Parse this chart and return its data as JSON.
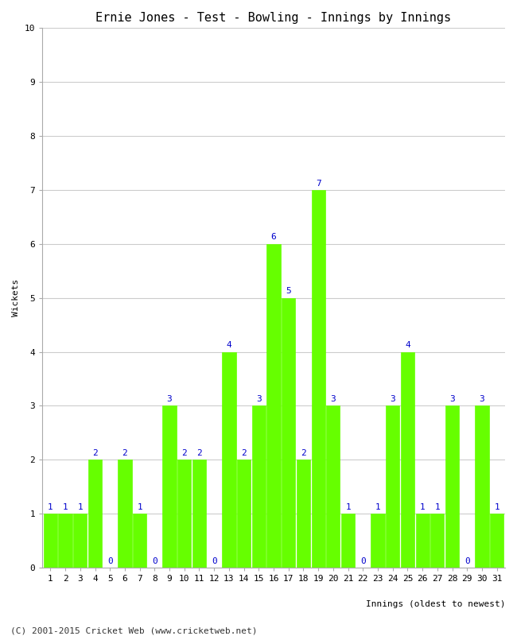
{
  "title": "Ernie Jones - Test - Bowling - Innings by Innings",
  "xlabel": "Innings (oldest to newest)",
  "ylabel": "Wickets",
  "categories": [
    1,
    2,
    3,
    4,
    5,
    6,
    7,
    8,
    9,
    10,
    11,
    12,
    13,
    14,
    15,
    16,
    17,
    18,
    19,
    20,
    21,
    22,
    23,
    24,
    25,
    26,
    27,
    28,
    29,
    30,
    31
  ],
  "values": [
    1,
    1,
    1,
    2,
    0,
    2,
    1,
    0,
    3,
    2,
    2,
    0,
    4,
    2,
    3,
    6,
    5,
    2,
    7,
    3,
    1,
    0,
    1,
    3,
    4,
    1,
    1,
    3,
    0,
    3,
    1
  ],
  "bar_color": "#66ff00",
  "bar_edge_color": "#66ff00",
  "label_color": "#0000cc",
  "bg_color": "#ffffff",
  "grid_color": "#cccccc",
  "ylim": [
    0,
    10
  ],
  "yticks": [
    0,
    1,
    2,
    3,
    4,
    5,
    6,
    7,
    8,
    9,
    10
  ],
  "footer": "(C) 2001-2015 Cricket Web (www.cricketweb.net)",
  "title_fontsize": 11,
  "label_fontsize": 8,
  "tick_fontsize": 8,
  "footer_fontsize": 8
}
